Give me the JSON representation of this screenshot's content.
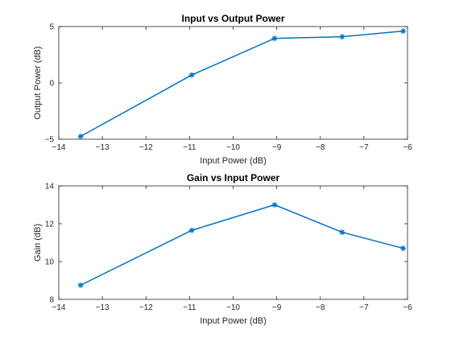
{
  "chart_data": [
    {
      "type": "line",
      "title": "Input vs Output Power",
      "xlabel": "Input Power (dB)",
      "ylabel": "Output Power (dB)",
      "xlim": [
        -14,
        -6
      ],
      "ylim": [
        -5,
        5
      ],
      "xticks": [
        -14,
        -13,
        -12,
        -11,
        -10,
        -9,
        -8,
        -7,
        -6
      ],
      "yticks": [
        -5,
        0,
        5
      ],
      "grid": true,
      "marker": "asterisk",
      "color": "#0072BD",
      "x": [
        -13.5,
        -10.95,
        -9.05,
        -7.5,
        -6.1
      ],
      "y": [
        -4.75,
        0.7,
        3.95,
        4.1,
        4.6
      ]
    },
    {
      "type": "line",
      "title": "Gain vs Input Power",
      "xlabel": "Input Power (dB)",
      "ylabel": "Gain (dB)",
      "xlim": [
        -14,
        -6
      ],
      "ylim": [
        8,
        14
      ],
      "xticks": [
        -14,
        -13,
        -12,
        -11,
        -10,
        -9,
        -8,
        -7,
        -6
      ],
      "yticks": [
        8,
        10,
        12,
        14
      ],
      "grid": true,
      "marker": "asterisk",
      "color": "#0072BD",
      "x": [
        -13.5,
        -10.95,
        -9.05,
        -7.5,
        -6.1
      ],
      "y": [
        8.75,
        11.65,
        13.0,
        11.55,
        10.7
      ]
    }
  ]
}
